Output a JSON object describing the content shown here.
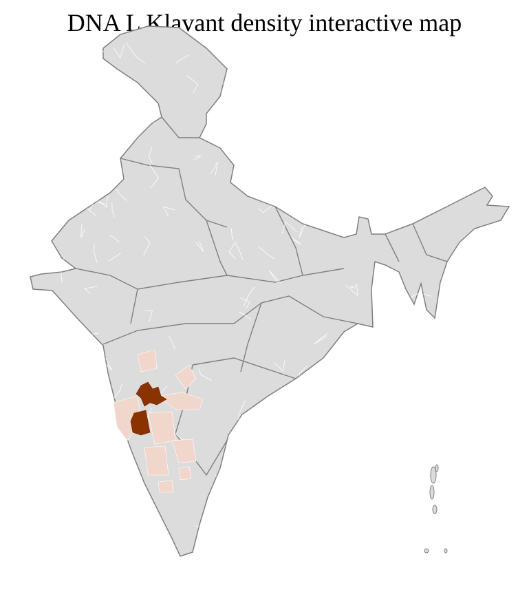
{
  "title": "DNA L Klavant density interactive map",
  "map": {
    "region": "India",
    "base_fill": "#dcdcdc",
    "district_border": "#ffffff",
    "state_border": "#7f7f7f",
    "density_colors": {
      "high": "#8b3300",
      "low": "#f0d6cb"
    }
  }
}
